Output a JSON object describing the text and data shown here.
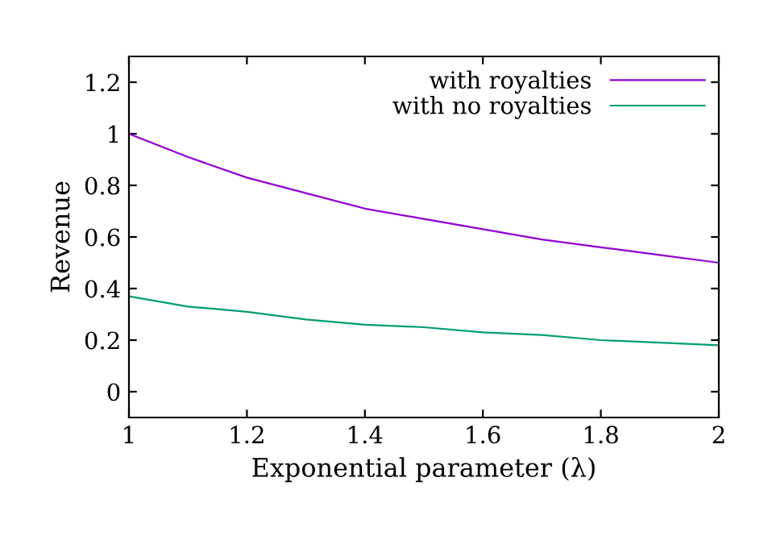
{
  "chart_data": {
    "type": "line",
    "xlabel": "Exponential parameter (λ)",
    "ylabel": "Revenue",
    "x": [
      1,
      1.1,
      1.2,
      1.3,
      1.4,
      1.5,
      1.6,
      1.7,
      1.8,
      1.9,
      2
    ],
    "series": [
      {
        "name": "with royalties",
        "color": "#9400d3",
        "values": [
          1.0,
          0.91,
          0.83,
          0.77,
          0.71,
          0.67,
          0.63,
          0.59,
          0.56,
          0.53,
          0.5
        ]
      },
      {
        "name": "with no royalties",
        "color": "#009e73",
        "values": [
          0.37,
          0.33,
          0.31,
          0.28,
          0.26,
          0.25,
          0.23,
          0.22,
          0.2,
          0.19,
          0.18
        ]
      }
    ],
    "xlim": [
      1,
      2
    ],
    "ylim": [
      -0.1,
      1.3
    ],
    "xticks": [
      1,
      1.2,
      1.4,
      1.6,
      1.8,
      2
    ],
    "yticks": [
      0,
      0.2,
      0.4,
      0.6,
      0.8,
      1,
      1.2
    ],
    "legend": "top right",
    "grid": false,
    "marker": "none",
    "line_style": "solid"
  }
}
